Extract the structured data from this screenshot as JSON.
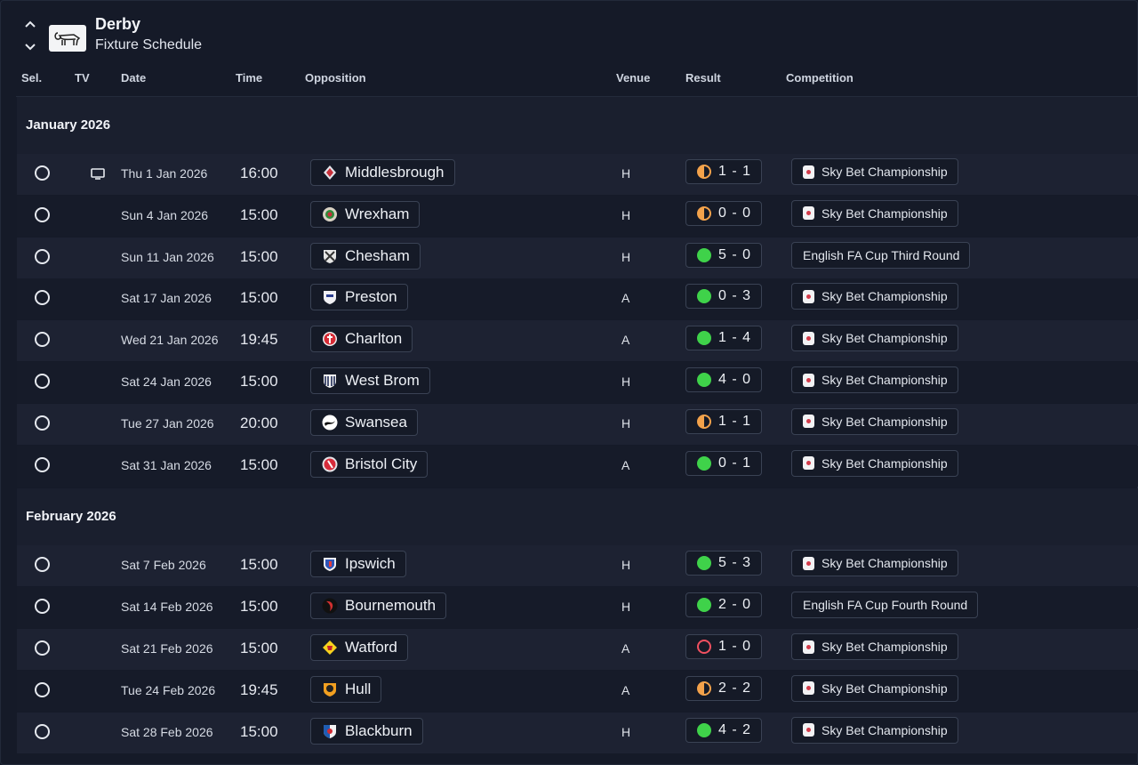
{
  "header": {
    "club_name": "Derby",
    "page_title": "Fixture Schedule"
  },
  "columns": [
    "Sel.",
    "TV",
    "Date",
    "Time",
    "Opposition",
    "Venue",
    "Result",
    "Competition"
  ],
  "months": [
    {
      "label": "January 2026",
      "fixtures": [
        {
          "tv": true,
          "date": "Thu 1 Jan 2026",
          "time": "16:00",
          "opposition": "Middlesbrough",
          "badge": "middlesbrough-badge",
          "venue": "H",
          "result": "1 - 1",
          "outcome": "draw",
          "competition": "Sky Bet Championship",
          "comp_logo": true
        },
        {
          "tv": false,
          "date": "Sun 4 Jan 2026",
          "time": "15:00",
          "opposition": "Wrexham",
          "badge": "wrexham-badge",
          "venue": "H",
          "result": "0 - 0",
          "outcome": "draw",
          "competition": "Sky Bet Championship",
          "comp_logo": true
        },
        {
          "tv": false,
          "date": "Sun 11 Jan 2026",
          "time": "15:00",
          "opposition": "Chesham",
          "badge": "chesham-badge",
          "venue": "H",
          "result": "5 - 0",
          "outcome": "win",
          "competition": "English FA Cup Third Round",
          "comp_logo": false
        },
        {
          "tv": false,
          "date": "Sat 17 Jan 2026",
          "time": "15:00",
          "opposition": "Preston",
          "badge": "preston-badge",
          "venue": "A",
          "result": "0 - 3",
          "outcome": "win",
          "competition": "Sky Bet Championship",
          "comp_logo": true
        },
        {
          "tv": false,
          "date": "Wed 21 Jan 2026",
          "time": "19:45",
          "opposition": "Charlton",
          "badge": "charlton-badge",
          "venue": "A",
          "result": "1 - 4",
          "outcome": "win",
          "competition": "Sky Bet Championship",
          "comp_logo": true
        },
        {
          "tv": false,
          "date": "Sat 24 Jan 2026",
          "time": "15:00",
          "opposition": "West Brom",
          "badge": "west-brom-badge",
          "venue": "H",
          "result": "4 - 0",
          "outcome": "win",
          "competition": "Sky Bet Championship",
          "comp_logo": true
        },
        {
          "tv": false,
          "date": "Tue 27 Jan 2026",
          "time": "20:00",
          "opposition": "Swansea",
          "badge": "swansea-badge",
          "venue": "H",
          "result": "1 - 1",
          "outcome": "draw",
          "competition": "Sky Bet Championship",
          "comp_logo": true
        },
        {
          "tv": false,
          "date": "Sat 31 Jan 2026",
          "time": "15:00",
          "opposition": "Bristol City",
          "badge": "bristol-city-badge",
          "venue": "A",
          "result": "0 - 1",
          "outcome": "win",
          "competition": "Sky Bet Championship",
          "comp_logo": true
        }
      ]
    },
    {
      "label": "February 2026",
      "fixtures": [
        {
          "tv": false,
          "date": "Sat 7 Feb 2026",
          "time": "15:00",
          "opposition": "Ipswich",
          "badge": "ipswich-badge",
          "venue": "H",
          "result": "5 - 3",
          "outcome": "win",
          "competition": "Sky Bet Championship",
          "comp_logo": true
        },
        {
          "tv": false,
          "date": "Sat 14 Feb 2026",
          "time": "15:00",
          "opposition": "Bournemouth",
          "badge": "bournemouth-badge",
          "venue": "H",
          "result": "2 - 0",
          "outcome": "win",
          "competition": "English FA Cup Fourth Round",
          "comp_logo": false
        },
        {
          "tv": false,
          "date": "Sat 21 Feb 2026",
          "time": "15:00",
          "opposition": "Watford",
          "badge": "watford-badge",
          "venue": "A",
          "result": "1 - 0",
          "outcome": "loss",
          "competition": "Sky Bet Championship",
          "comp_logo": true
        },
        {
          "tv": false,
          "date": "Tue 24 Feb 2026",
          "time": "19:45",
          "opposition": "Hull",
          "badge": "hull-badge",
          "venue": "A",
          "result": "2 - 2",
          "outcome": "draw",
          "competition": "Sky Bet Championship",
          "comp_logo": true
        },
        {
          "tv": false,
          "date": "Sat 28 Feb 2026",
          "time": "15:00",
          "opposition": "Blackburn",
          "badge": "blackburn-badge",
          "venue": "H",
          "result": "4 - 2",
          "outcome": "win",
          "competition": "Sky Bet Championship",
          "comp_logo": true
        }
      ]
    }
  ],
  "colors": {
    "background": "#151a28",
    "row_alt": "#1d2232",
    "win": "#3fd24a",
    "draw": "#f3a24b",
    "loss": "#f05060"
  }
}
